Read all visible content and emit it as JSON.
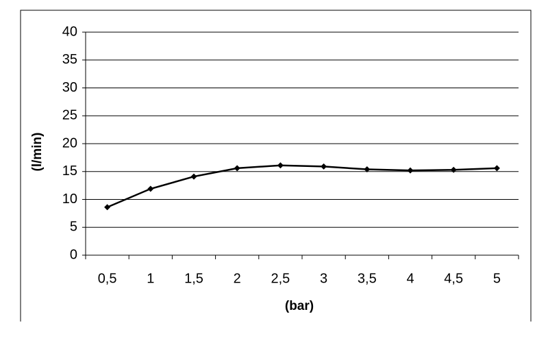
{
  "chart_data": {
    "type": "line",
    "x_label": "(bar)",
    "y_label": "(l/min)",
    "categories": [
      "0,5",
      "1",
      "1,5",
      "2",
      "2,5",
      "3",
      "3,5",
      "4",
      "4,5",
      "5"
    ],
    "values": [
      8.6,
      11.9,
      14.1,
      15.6,
      16.1,
      15.9,
      15.4,
      15.2,
      15.3,
      15.6
    ],
    "color": "#000000",
    "ylim": [
      0,
      40
    ],
    "yticks": [
      0,
      5,
      10,
      15,
      20,
      25,
      30,
      35,
      40
    ],
    "grid": true
  }
}
